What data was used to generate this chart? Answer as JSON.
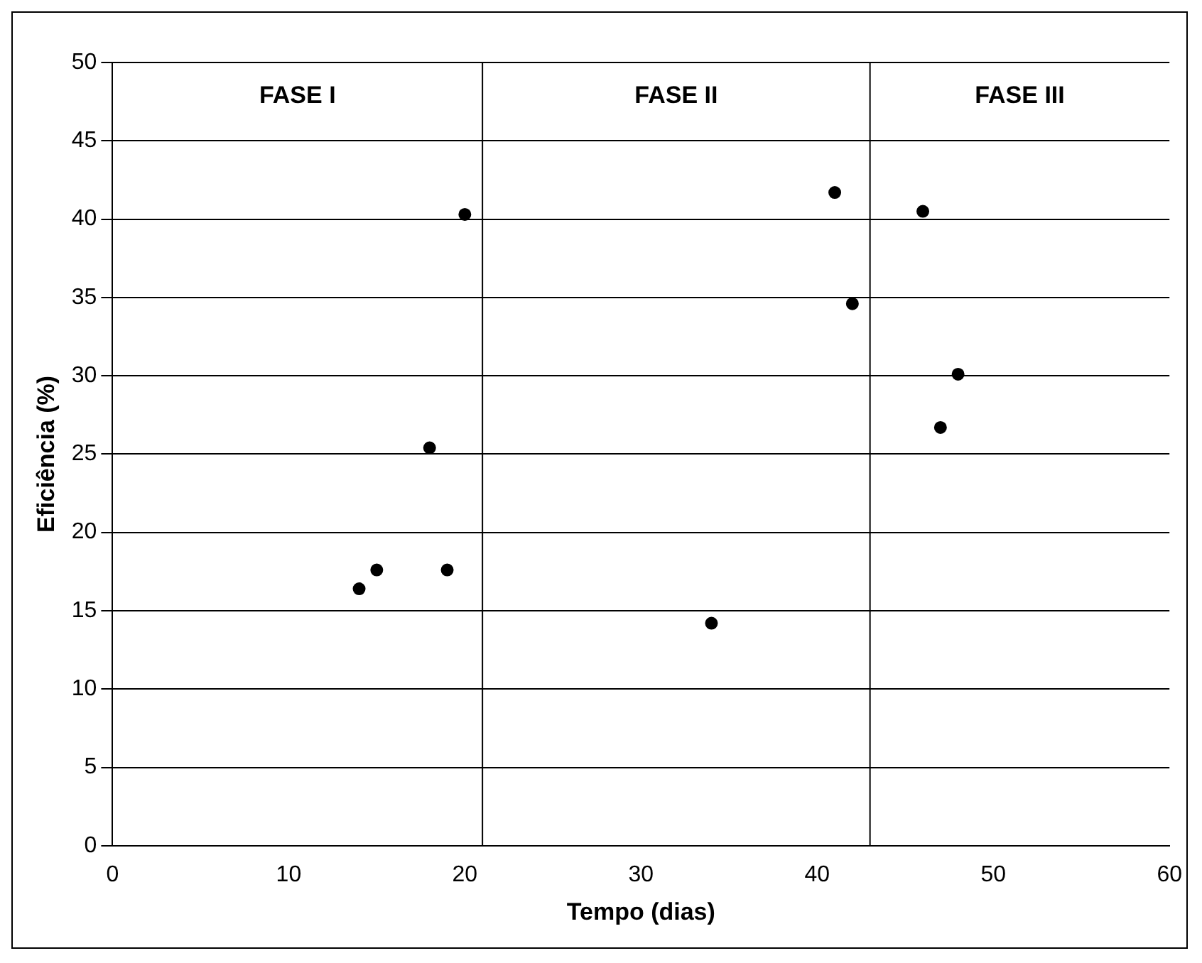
{
  "chart_data": {
    "type": "scatter",
    "xlabel": "Tempo (dias)",
    "ylabel": "Eficiência (%)",
    "x": [
      14,
      15,
      18,
      19,
      20,
      34,
      41,
      42,
      46,
      47,
      48
    ],
    "values": [
      16.4,
      17.6,
      25.4,
      17.6,
      40.3,
      14.2,
      41.7,
      34.6,
      40.5,
      26.7,
      30.1
    ],
    "color": "#000000",
    "marker": "circle",
    "xlim": [
      0,
      60
    ],
    "xticks": [
      0,
      10,
      20,
      30,
      40,
      50,
      60
    ],
    "ylim": [
      0,
      50
    ],
    "yticks": [
      0,
      5,
      10,
      15,
      20,
      25,
      30,
      35,
      40,
      45,
      50
    ],
    "grid": "y",
    "legend": false,
    "ref_lines": [
      {
        "axis": "x",
        "value": 21,
        "color": "#000000"
      },
      {
        "axis": "x",
        "value": 43,
        "color": "#000000"
      }
    ],
    "annotations": [
      "FASE I",
      "FASE II",
      "FASE III"
    ]
  }
}
